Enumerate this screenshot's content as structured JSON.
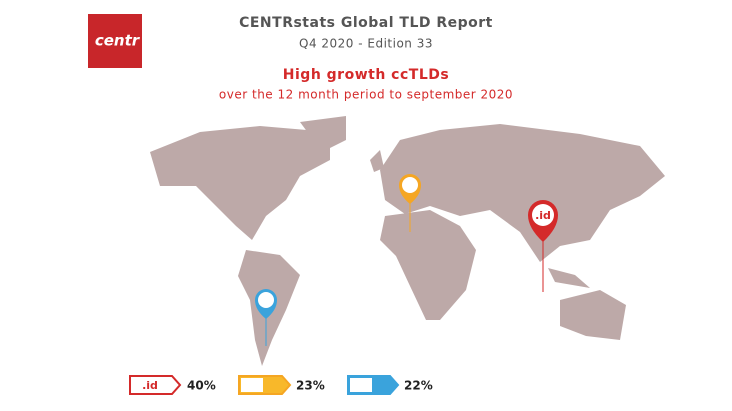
{
  "logo": "centr",
  "header": {
    "title": "CENTRstats Global TLD Report",
    "subtitle": "Q4 2020 - Edition 33"
  },
  "heading": {
    "title": "High growth ccTLDs",
    "subtitle": "over the 12 month period to september 2020"
  },
  "pin_label": ".id",
  "legend": [
    {
      "label": ".id",
      "share": "40%"
    },
    {
      "share": "23%"
    },
    {
      "share": "22%"
    }
  ]
}
